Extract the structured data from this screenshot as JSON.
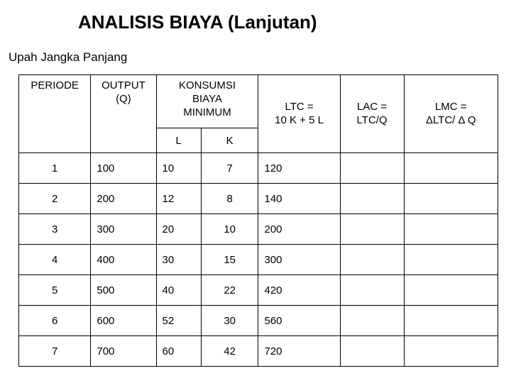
{
  "title": "ANALISIS  BIAYA (Lanjutan)",
  "subtitle": "Upah Jangka Panjang",
  "headers": {
    "periode": "PERIODE",
    "output_line1": "OUTPUT",
    "output_line2": "(Q)",
    "konsumsi_line1": "KONSUMSI",
    "konsumsi_line2": "BIAYA",
    "konsumsi_line3": "MINIMUM",
    "l": "L",
    "k": "K",
    "ltc_line1": "LTC =",
    "ltc_line2": "10 K + 5 L",
    "lac_line1": "LAC =",
    "lac_line2": "LTC/Q",
    "lmc_line1": "LMC =",
    "lmc_line2": "ΔLTC/ Δ Q"
  },
  "rows": [
    {
      "periode": "1",
      "output": "100",
      "l": "10",
      "k": "7",
      "ltc": "120",
      "lac": "",
      "lmc": ""
    },
    {
      "periode": "2",
      "output": "200",
      "l": "12",
      "k": "8",
      "ltc": "140",
      "lac": "",
      "lmc": ""
    },
    {
      "periode": "3",
      "output": "300",
      "l": "20",
      "k": "10",
      "ltc": "200",
      "lac": "",
      "lmc": ""
    },
    {
      "periode": "4",
      "output": "400",
      "l": "30",
      "k": "15",
      "ltc": "300",
      "lac": "",
      "lmc": ""
    },
    {
      "periode": "5",
      "output": "500",
      "l": "40",
      "k": "22",
      "ltc": "420",
      "lac": "",
      "lmc": ""
    },
    {
      "periode": "6",
      "output": "600",
      "l": "52",
      "k": "30",
      "ltc": "560",
      "lac": "",
      "lmc": ""
    },
    {
      "periode": "7",
      "output": "700",
      "l": "60",
      "k": "42",
      "ltc": "720",
      "lac": "",
      "lmc": ""
    }
  ]
}
